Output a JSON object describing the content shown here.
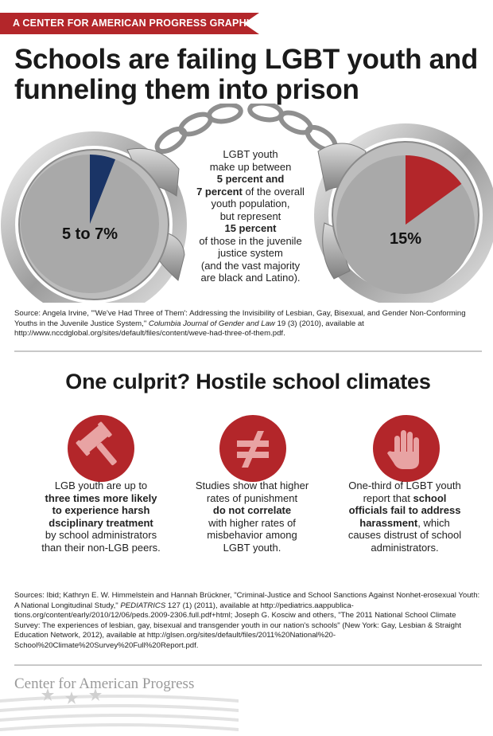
{
  "banner": "A CENTER FOR AMERICAN PROGRESS GRAPHIC",
  "title": "Schools are failing LGBT youth and funneling them into prison",
  "chart_data": [
    {
      "type": "pie",
      "values": [
        6,
        94
      ],
      "data_labels": [
        "5 to 7%"
      ],
      "colors": [
        "#1a3466",
        "#a9a9a9"
      ]
    },
    {
      "type": "pie",
      "values": [
        15,
        85
      ],
      "data_labels": [
        "15%"
      ],
      "colors": [
        "#b3262a",
        "#a9a9a9"
      ]
    }
  ],
  "center_text": {
    "l1": "LGBT youth",
    "l2": "make up between",
    "b1": "5 percent and",
    "b2": "7 percent",
    "l3": "of the overall",
    "l4": "youth population,",
    "l5": "but represent",
    "b3": "15 percent",
    "l6": "of those in the juvenile",
    "l7": "justice system",
    "l8": "(and the vast majority",
    "l9": "are black and Latino)."
  },
  "source1": {
    "pre": "Source: Angela Irvine, \"'We've Had Three of Them': Addressing the Invisibility of Lesbian, Gay, Bisexual, and Gender Non-Conforming Youths in the Juvenile Justice System,\"",
    "journal": "Columbia Journal of Gender and Law",
    "post": "19 (3) (2010), available at http://www.nccdglobal.org/sites/default/files/content/weve-had-three-of-them.pdf."
  },
  "subtitle": "One culprit? Hostile school climates",
  "icons": {
    "gavel": "gavel-icon",
    "not_equal": "not-equal-icon",
    "hand": "raised-hand-icon"
  },
  "col1": {
    "t1": "LGB youth are up to",
    "b1": "three times more likely",
    "b2": "to experience harsh",
    "b3": "dsciplinary treatment",
    "t2": "by school administrators",
    "t3": "than their non-LGB peers."
  },
  "col2": {
    "t1": "Studies show that higher",
    "t2": "rates of punishment",
    "b1": "do not correlate",
    "t3": "with higher rates of",
    "t4": "misbehavior among",
    "t5": "LGBT youth."
  },
  "col3": {
    "t1": "One-third of LGBT youth",
    "t2a": "report that",
    "b1": "school",
    "b2": "officials fail to address",
    "b3": "harassment",
    "t3": ", which",
    "t4": "causes distrust of school",
    "t5": "administrators."
  },
  "source2": {
    "pre": "Sources: Ibid; Kathryn E. W. Himmelstein and Hannah Brückner, \"Criminal-Justice and School Sanctions Against Nonhet-erosexual Youth: A National Longitudinal Study,\"",
    "journal": "PEDIATRICS",
    "post": "127 (1) (2011), available at http://pediatrics.aappublica-tions.org/content/early/2010/12/06/peds.2009-2306.full.pdf+html; Joseph G. Kosciw and others, \"The 2011 National School Climate Survey: The experiences of lesbian, gay, bisexual and transgender youth in our nation's schools\" (New York: Gay, Lesbian & Straight Education Network, 2012), available at http://glsen.org/sites/default/files/2011%20National%20-School%20Climate%20Survey%20Full%20Report.pdf."
  },
  "footer": "Center for American Progress"
}
